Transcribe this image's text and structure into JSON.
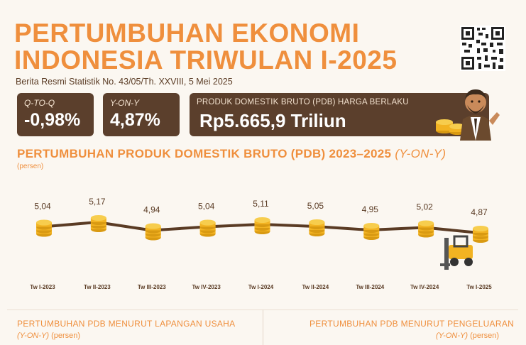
{
  "header": {
    "title_line1": "PERTUMBUHAN EKONOMI",
    "title_line2": "INDONESIA TRIWULAN I-2025",
    "subtitle": "Berita Resmi Statistik No. 43/05/Th. XXVIII, 5 Mei 2025"
  },
  "cards": {
    "qtoq_label": "Q-TO-Q",
    "qtoq_value": "-0,98%",
    "yony_label": "Y-ON-Y",
    "yony_value": "4,87%",
    "pdb_label": "PRODUK DOMESTIK BRUTO (PDB) HARGA BERLAKU",
    "pdb_value": "Rp5.665,9 Triliun"
  },
  "sections": {
    "left_title": "PERTUMBUHAN PDB MENURUT LAPANGAN USAHA",
    "left_sub_italic": "(Y-ON-Y)",
    "left_sub_unit": " (persen)",
    "right_title": "PERTUMBUHAN PDB MENURUT PENGELUARAN",
    "right_sub_italic": "(Y-ON-Y)",
    "right_sub_unit": " (persen)"
  },
  "colors": {
    "accent": "#ef8f3d",
    "card": "#5b3f2c",
    "line": "#5a3b24",
    "coin": "#f2b322"
  },
  "icons": [
    "qr-code-icon",
    "businessman-illustration",
    "coin-stack-icon",
    "forklift-icon"
  ],
  "chart_data": {
    "type": "line",
    "title": "PERTUMBUHAN PRODUK DOMESTIK BRUTO (PDB) 2023–2025 ",
    "title_italic": "(Y-ON-Y)",
    "ylabel": "(persen)",
    "xlabel": "",
    "categories": [
      "Tw I-2023",
      "Tw II-2023",
      "Tw III-2023",
      "Tw IV-2023",
      "Tw I-2024",
      "Tw II-2024",
      "Tw III-2024",
      "Tw IV-2024",
      "Tw I-2025"
    ],
    "labels": [
      "5,04",
      "5,17",
      "4,94",
      "5,04",
      "5,11",
      "5,05",
      "4,95",
      "5,02",
      "4,87"
    ],
    "values": [
      5.04,
      5.17,
      4.94,
      5.04,
      5.11,
      5.05,
      4.95,
      5.02,
      4.87
    ],
    "ylim": [
      4.87,
      5.17
    ],
    "grid": false
  }
}
